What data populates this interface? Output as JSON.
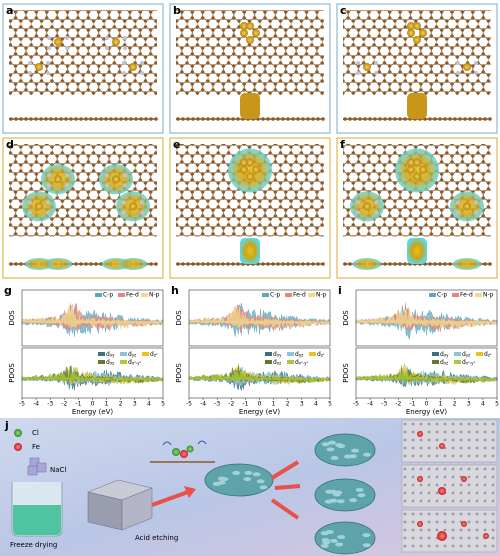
{
  "panel_labels": [
    "a",
    "b",
    "c",
    "d",
    "e",
    "f",
    "g",
    "h",
    "i",
    "j"
  ],
  "dos": {
    "y_label_top": "DOS",
    "y_label_bottom": "PDOS",
    "x_label": "Energy (eV)",
    "xlim": [
      -5,
      5
    ],
    "xticks": [
      -5,
      -4,
      -3,
      -2,
      -1,
      0,
      1,
      2,
      3,
      4,
      5
    ],
    "legend_top": [
      {
        "name": "C-p",
        "color": "#5aa9bf"
      },
      {
        "name": "Fe-d",
        "color": "#e8857a"
      },
      {
        "name": "N-p",
        "color": "#f3d98a"
      }
    ],
    "legend_bottom": [
      {
        "base": "d",
        "sub": "xy",
        "color": "#3d6f7e"
      },
      {
        "base": "d",
        "sub": "yz",
        "color": "#86c6de"
      },
      {
        "base": "d",
        "sub": "z²",
        "color": "#e8c21e"
      },
      {
        "base": "d",
        "sub": "xz",
        "color": "#5e7d2a"
      },
      {
        "base": "d",
        "sub": "x²-y²",
        "color": "#a9c93a"
      }
    ]
  },
  "synthesis": {
    "cl": "Cl",
    "fe": "Fe",
    "nacl": "NaCl",
    "freeze": "Freeze drying",
    "etch": "Acid etching"
  }
}
